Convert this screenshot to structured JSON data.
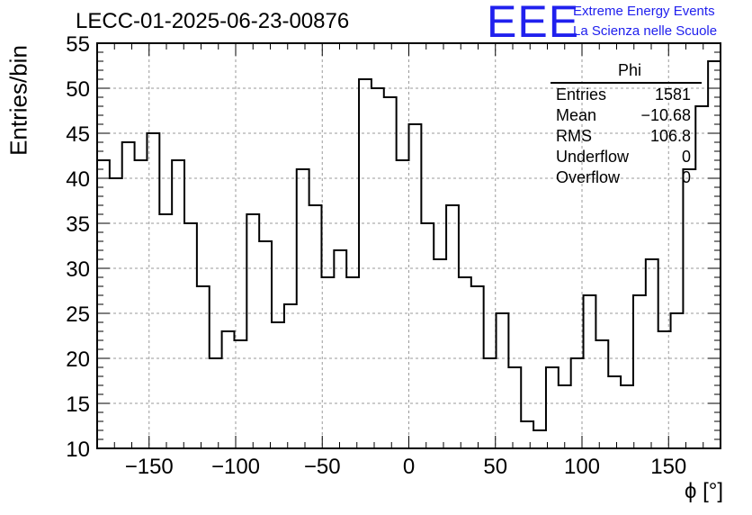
{
  "title": "LECC-01-2025-06-23-00876",
  "logo": {
    "mark": "EEE",
    "line1": "Extreme Energy Events",
    "line2": "La Scienza nelle Scuole",
    "color": "#2020ee"
  },
  "stats": {
    "name": "Phi",
    "rows": [
      {
        "label": "Entries",
        "value": "1581"
      },
      {
        "label": "Mean",
        "value": "−10.68"
      },
      {
        "label": "RMS",
        "value": "106.8"
      },
      {
        "label": "Underflow",
        "value": "0"
      },
      {
        "label": "Overflow",
        "value": "0"
      }
    ]
  },
  "chart_data": {
    "type": "bar",
    "histogram": true,
    "title": "LECC-01-2025-06-23-00876",
    "xlabel": "ϕ [°]",
    "ylabel": "Entries/bin",
    "xlim": [
      -180,
      180
    ],
    "ylim": [
      10,
      55
    ],
    "bin_width": 7.2,
    "x_ticks": [
      -150,
      -100,
      -50,
      0,
      50,
      100,
      150
    ],
    "x_tick_labels": [
      "−150",
      "−100",
      "−50",
      "0",
      "50",
      "100",
      "150"
    ],
    "y_ticks": [
      10,
      15,
      20,
      25,
      30,
      35,
      40,
      45,
      50,
      55
    ],
    "y_tick_labels": [
      "10",
      "15",
      "20",
      "25",
      "30",
      "35",
      "40",
      "45",
      "50",
      "55"
    ],
    "grid": true,
    "values": [
      42,
      40,
      44,
      42,
      45,
      36,
      42,
      35,
      28,
      20,
      23,
      22,
      36,
      33,
      24,
      26,
      41,
      37,
      29,
      32,
      29,
      51,
      50,
      49,
      42,
      46,
      35,
      31,
      37,
      29,
      28,
      20,
      25,
      19,
      13,
      12,
      19,
      17,
      20,
      27,
      22,
      18,
      17,
      27,
      31,
      23,
      25,
      41,
      48,
      53
    ]
  }
}
